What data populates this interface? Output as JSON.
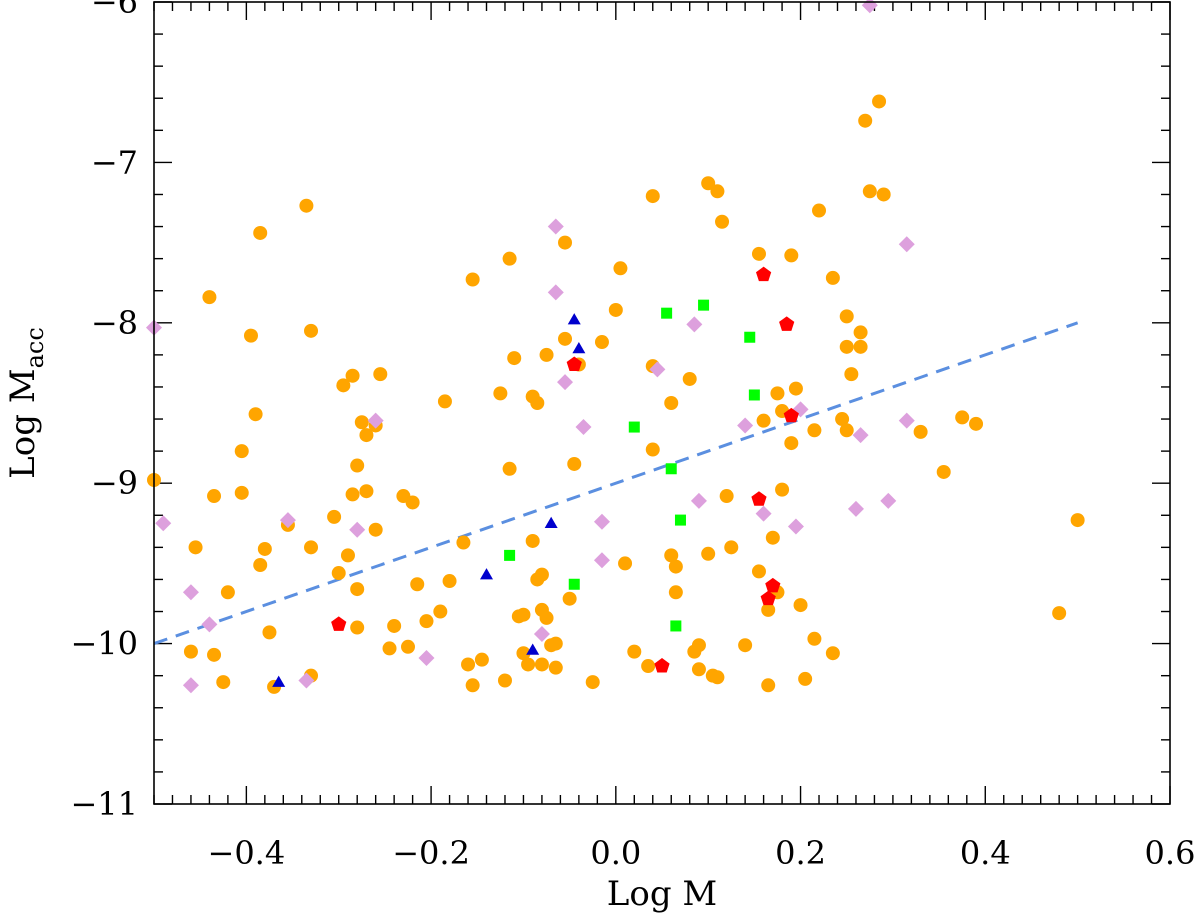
{
  "chart_data": {
    "type": "scatter",
    "title": "",
    "xlabel": "Log M",
    "ylabel": "Log M",
    "ylabel_sub": "acc",
    "xlim": [
      -0.5,
      0.6
    ],
    "ylim": [
      -11.0,
      -6.0
    ],
    "x_ticks": [
      -0.4,
      -0.2,
      0.0,
      0.2,
      0.4,
      0.6
    ],
    "x_tick_labels": [
      "−0.4",
      "−0.2",
      "0.0",
      "0.2",
      "0.4",
      "0.6"
    ],
    "y_ticks": [
      -11,
      -10,
      -9,
      -8,
      -7,
      -6
    ],
    "y_tick_labels": [
      "−11",
      "−10",
      "−9",
      "−8",
      "−7",
      "−6"
    ],
    "grid": false,
    "legend": "none",
    "series": [
      {
        "marker": "circle",
        "color": "#ffa500",
        "points": [
          [
            -0.5,
            -8.98
          ],
          [
            -0.455,
            -9.4
          ],
          [
            -0.46,
            -10.05
          ],
          [
            -0.44,
            -7.84
          ],
          [
            -0.435,
            -9.08
          ],
          [
            -0.435,
            -10.07
          ],
          [
            -0.425,
            -10.24
          ],
          [
            -0.42,
            -9.68
          ],
          [
            -0.405,
            -8.8
          ],
          [
            -0.405,
            -9.06
          ],
          [
            -0.395,
            -8.08
          ],
          [
            -0.39,
            -8.57
          ],
          [
            -0.385,
            -7.44
          ],
          [
            -0.385,
            -9.51
          ],
          [
            -0.38,
            -9.41
          ],
          [
            -0.375,
            -9.93
          ],
          [
            -0.37,
            -10.27
          ],
          [
            -0.355,
            -9.26
          ],
          [
            -0.335,
            -7.27
          ],
          [
            -0.33,
            -8.05
          ],
          [
            -0.33,
            -9.4
          ],
          [
            -0.33,
            -10.2
          ],
          [
            -0.305,
            -9.21
          ],
          [
            -0.3,
            -9.56
          ],
          [
            -0.295,
            -8.39
          ],
          [
            -0.29,
            -9.45
          ],
          [
            -0.285,
            -8.33
          ],
          [
            -0.285,
            -9.07
          ],
          [
            -0.28,
            -8.89
          ],
          [
            -0.28,
            -9.66
          ],
          [
            -0.28,
            -9.9
          ],
          [
            -0.275,
            -8.62
          ],
          [
            -0.27,
            -8.7
          ],
          [
            -0.27,
            -9.05
          ],
          [
            -0.26,
            -8.64
          ],
          [
            -0.26,
            -9.29
          ],
          [
            -0.255,
            -8.32
          ],
          [
            -0.245,
            -10.03
          ],
          [
            -0.24,
            -9.89
          ],
          [
            -0.23,
            -9.08
          ],
          [
            -0.225,
            -10.02
          ],
          [
            -0.22,
            -9.12
          ],
          [
            -0.215,
            -9.63
          ],
          [
            -0.205,
            -9.86
          ],
          [
            -0.19,
            -9.8
          ],
          [
            -0.185,
            -8.49
          ],
          [
            -0.18,
            -9.61
          ],
          [
            -0.165,
            -9.37
          ],
          [
            -0.16,
            -10.13
          ],
          [
            -0.155,
            -7.73
          ],
          [
            -0.155,
            -10.26
          ],
          [
            -0.145,
            -10.1
          ],
          [
            -0.125,
            -8.44
          ],
          [
            -0.12,
            -10.23
          ],
          [
            -0.115,
            -8.91
          ],
          [
            -0.115,
            -7.6
          ],
          [
            -0.11,
            -8.22
          ],
          [
            -0.105,
            -9.83
          ],
          [
            -0.1,
            -10.06
          ],
          [
            -0.1,
            -9.82
          ],
          [
            -0.095,
            -10.13
          ],
          [
            -0.09,
            -9.36
          ],
          [
            -0.09,
            -8.46
          ],
          [
            -0.085,
            -8.5
          ],
          [
            -0.085,
            -9.6
          ],
          [
            -0.08,
            -10.13
          ],
          [
            -0.08,
            -9.57
          ],
          [
            -0.08,
            -9.79
          ],
          [
            -0.075,
            -8.2
          ],
          [
            -0.075,
            -9.84
          ],
          [
            -0.07,
            -10.01
          ],
          [
            -0.065,
            -10.0
          ],
          [
            -0.065,
            -10.15
          ],
          [
            -0.055,
            -7.5
          ],
          [
            -0.055,
            -8.1
          ],
          [
            -0.05,
            -9.72
          ],
          [
            -0.045,
            -8.88
          ],
          [
            -0.04,
            -8.26
          ],
          [
            -0.025,
            -10.24
          ],
          [
            -0.015,
            -8.12
          ],
          [
            0.0,
            -7.92
          ],
          [
            0.005,
            -7.66
          ],
          [
            0.01,
            -9.5
          ],
          [
            0.02,
            -10.05
          ],
          [
            0.035,
            -10.14
          ],
          [
            0.04,
            -7.21
          ],
          [
            0.04,
            -8.27
          ],
          [
            0.04,
            -8.79
          ],
          [
            0.06,
            -9.45
          ],
          [
            0.06,
            -8.5
          ],
          [
            0.065,
            -9.52
          ],
          [
            0.065,
            -9.68
          ],
          [
            0.08,
            -8.35
          ],
          [
            0.085,
            -10.05
          ],
          [
            0.09,
            -10.01
          ],
          [
            0.09,
            -10.16
          ],
          [
            0.1,
            -7.13
          ],
          [
            0.1,
            -9.44
          ],
          [
            0.105,
            -10.2
          ],
          [
            0.11,
            -10.21
          ],
          [
            0.11,
            -7.18
          ],
          [
            0.115,
            -7.37
          ],
          [
            0.12,
            -9.08
          ],
          [
            0.125,
            -9.4
          ],
          [
            0.14,
            -10.01
          ],
          [
            0.155,
            -7.57
          ],
          [
            0.155,
            -9.55
          ],
          [
            0.16,
            -8.61
          ],
          [
            0.165,
            -10.26
          ],
          [
            0.165,
            -9.79
          ],
          [
            0.17,
            -9.34
          ],
          [
            0.175,
            -9.68
          ],
          [
            0.175,
            -8.44
          ],
          [
            0.18,
            -8.55
          ],
          [
            0.18,
            -9.04
          ],
          [
            0.19,
            -7.58
          ],
          [
            0.19,
            -8.75
          ],
          [
            0.195,
            -8.41
          ],
          [
            0.2,
            -9.76
          ],
          [
            0.205,
            -10.22
          ],
          [
            0.215,
            -9.97
          ],
          [
            0.215,
            -8.67
          ],
          [
            0.22,
            -7.3
          ],
          [
            0.235,
            -7.72
          ],
          [
            0.235,
            -10.06
          ],
          [
            0.245,
            -8.6
          ],
          [
            0.25,
            -8.15
          ],
          [
            0.25,
            -7.96
          ],
          [
            0.25,
            -8.67
          ],
          [
            0.255,
            -8.32
          ],
          [
            0.265,
            -8.15
          ],
          [
            0.265,
            -8.06
          ],
          [
            0.27,
            -6.74
          ],
          [
            0.275,
            -7.18
          ],
          [
            0.285,
            -6.62
          ],
          [
            0.29,
            -7.2
          ],
          [
            0.33,
            -8.68
          ],
          [
            0.355,
            -8.93
          ],
          [
            0.375,
            -8.59
          ],
          [
            0.39,
            -8.63
          ],
          [
            0.48,
            -9.81
          ],
          [
            0.5,
            -9.23
          ]
        ]
      },
      {
        "marker": "diamond",
        "color": "#dda0dd",
        "points": [
          [
            -0.5,
            -8.03
          ],
          [
            -0.49,
            -9.25
          ],
          [
            -0.46,
            -9.68
          ],
          [
            -0.46,
            -10.26
          ],
          [
            -0.44,
            -9.88
          ],
          [
            -0.355,
            -9.23
          ],
          [
            -0.335,
            -10.23
          ],
          [
            -0.28,
            -9.29
          ],
          [
            -0.26,
            -8.61
          ],
          [
            -0.205,
            -10.09
          ],
          [
            -0.08,
            -9.94
          ],
          [
            -0.065,
            -7.4
          ],
          [
            -0.065,
            -7.81
          ],
          [
            -0.055,
            -8.37
          ],
          [
            -0.035,
            -8.65
          ],
          [
            -0.015,
            -9.24
          ],
          [
            -0.015,
            -9.48
          ],
          [
            0.045,
            -8.29
          ],
          [
            0.085,
            -8.01
          ],
          [
            0.09,
            -9.11
          ],
          [
            0.14,
            -8.64
          ],
          [
            0.16,
            -9.19
          ],
          [
            0.195,
            -9.27
          ],
          [
            0.2,
            -8.54
          ],
          [
            0.26,
            -9.16
          ],
          [
            0.265,
            -8.7
          ],
          [
            0.275,
            -6.02
          ],
          [
            0.295,
            -9.11
          ],
          [
            0.315,
            -8.61
          ],
          [
            0.315,
            -7.51
          ]
        ]
      },
      {
        "marker": "triangle",
        "color": "#0000cd",
        "points": [
          [
            -0.365,
            -10.24
          ],
          [
            -0.14,
            -9.57
          ],
          [
            -0.09,
            -10.04
          ],
          [
            -0.07,
            -9.25
          ],
          [
            -0.045,
            -7.98
          ],
          [
            -0.04,
            -8.16
          ]
        ]
      },
      {
        "marker": "square",
        "color": "#00ff00",
        "points": [
          [
            -0.115,
            -9.45
          ],
          [
            -0.045,
            -9.63
          ],
          [
            0.02,
            -8.65
          ],
          [
            0.055,
            -7.94
          ],
          [
            0.06,
            -8.91
          ],
          [
            0.065,
            -9.89
          ],
          [
            0.07,
            -9.23
          ],
          [
            0.095,
            -7.89
          ],
          [
            0.145,
            -8.09
          ],
          [
            0.15,
            -8.45
          ]
        ]
      },
      {
        "marker": "pentagon",
        "color": "#ff0000",
        "points": [
          [
            -0.3,
            -9.88
          ],
          [
            -0.045,
            -8.26
          ],
          [
            0.05,
            -10.14
          ],
          [
            0.155,
            -9.1
          ],
          [
            0.16,
            -7.7
          ],
          [
            0.165,
            -9.72
          ],
          [
            0.17,
            -9.64
          ],
          [
            0.185,
            -8.01
          ],
          [
            0.19,
            -8.58
          ]
        ]
      }
    ],
    "fit_line": {
      "style": "dashed",
      "color": "#5b8fe0",
      "x": [
        -0.5,
        0.5
      ],
      "y": [
        -10.0,
        -8.0
      ]
    }
  }
}
